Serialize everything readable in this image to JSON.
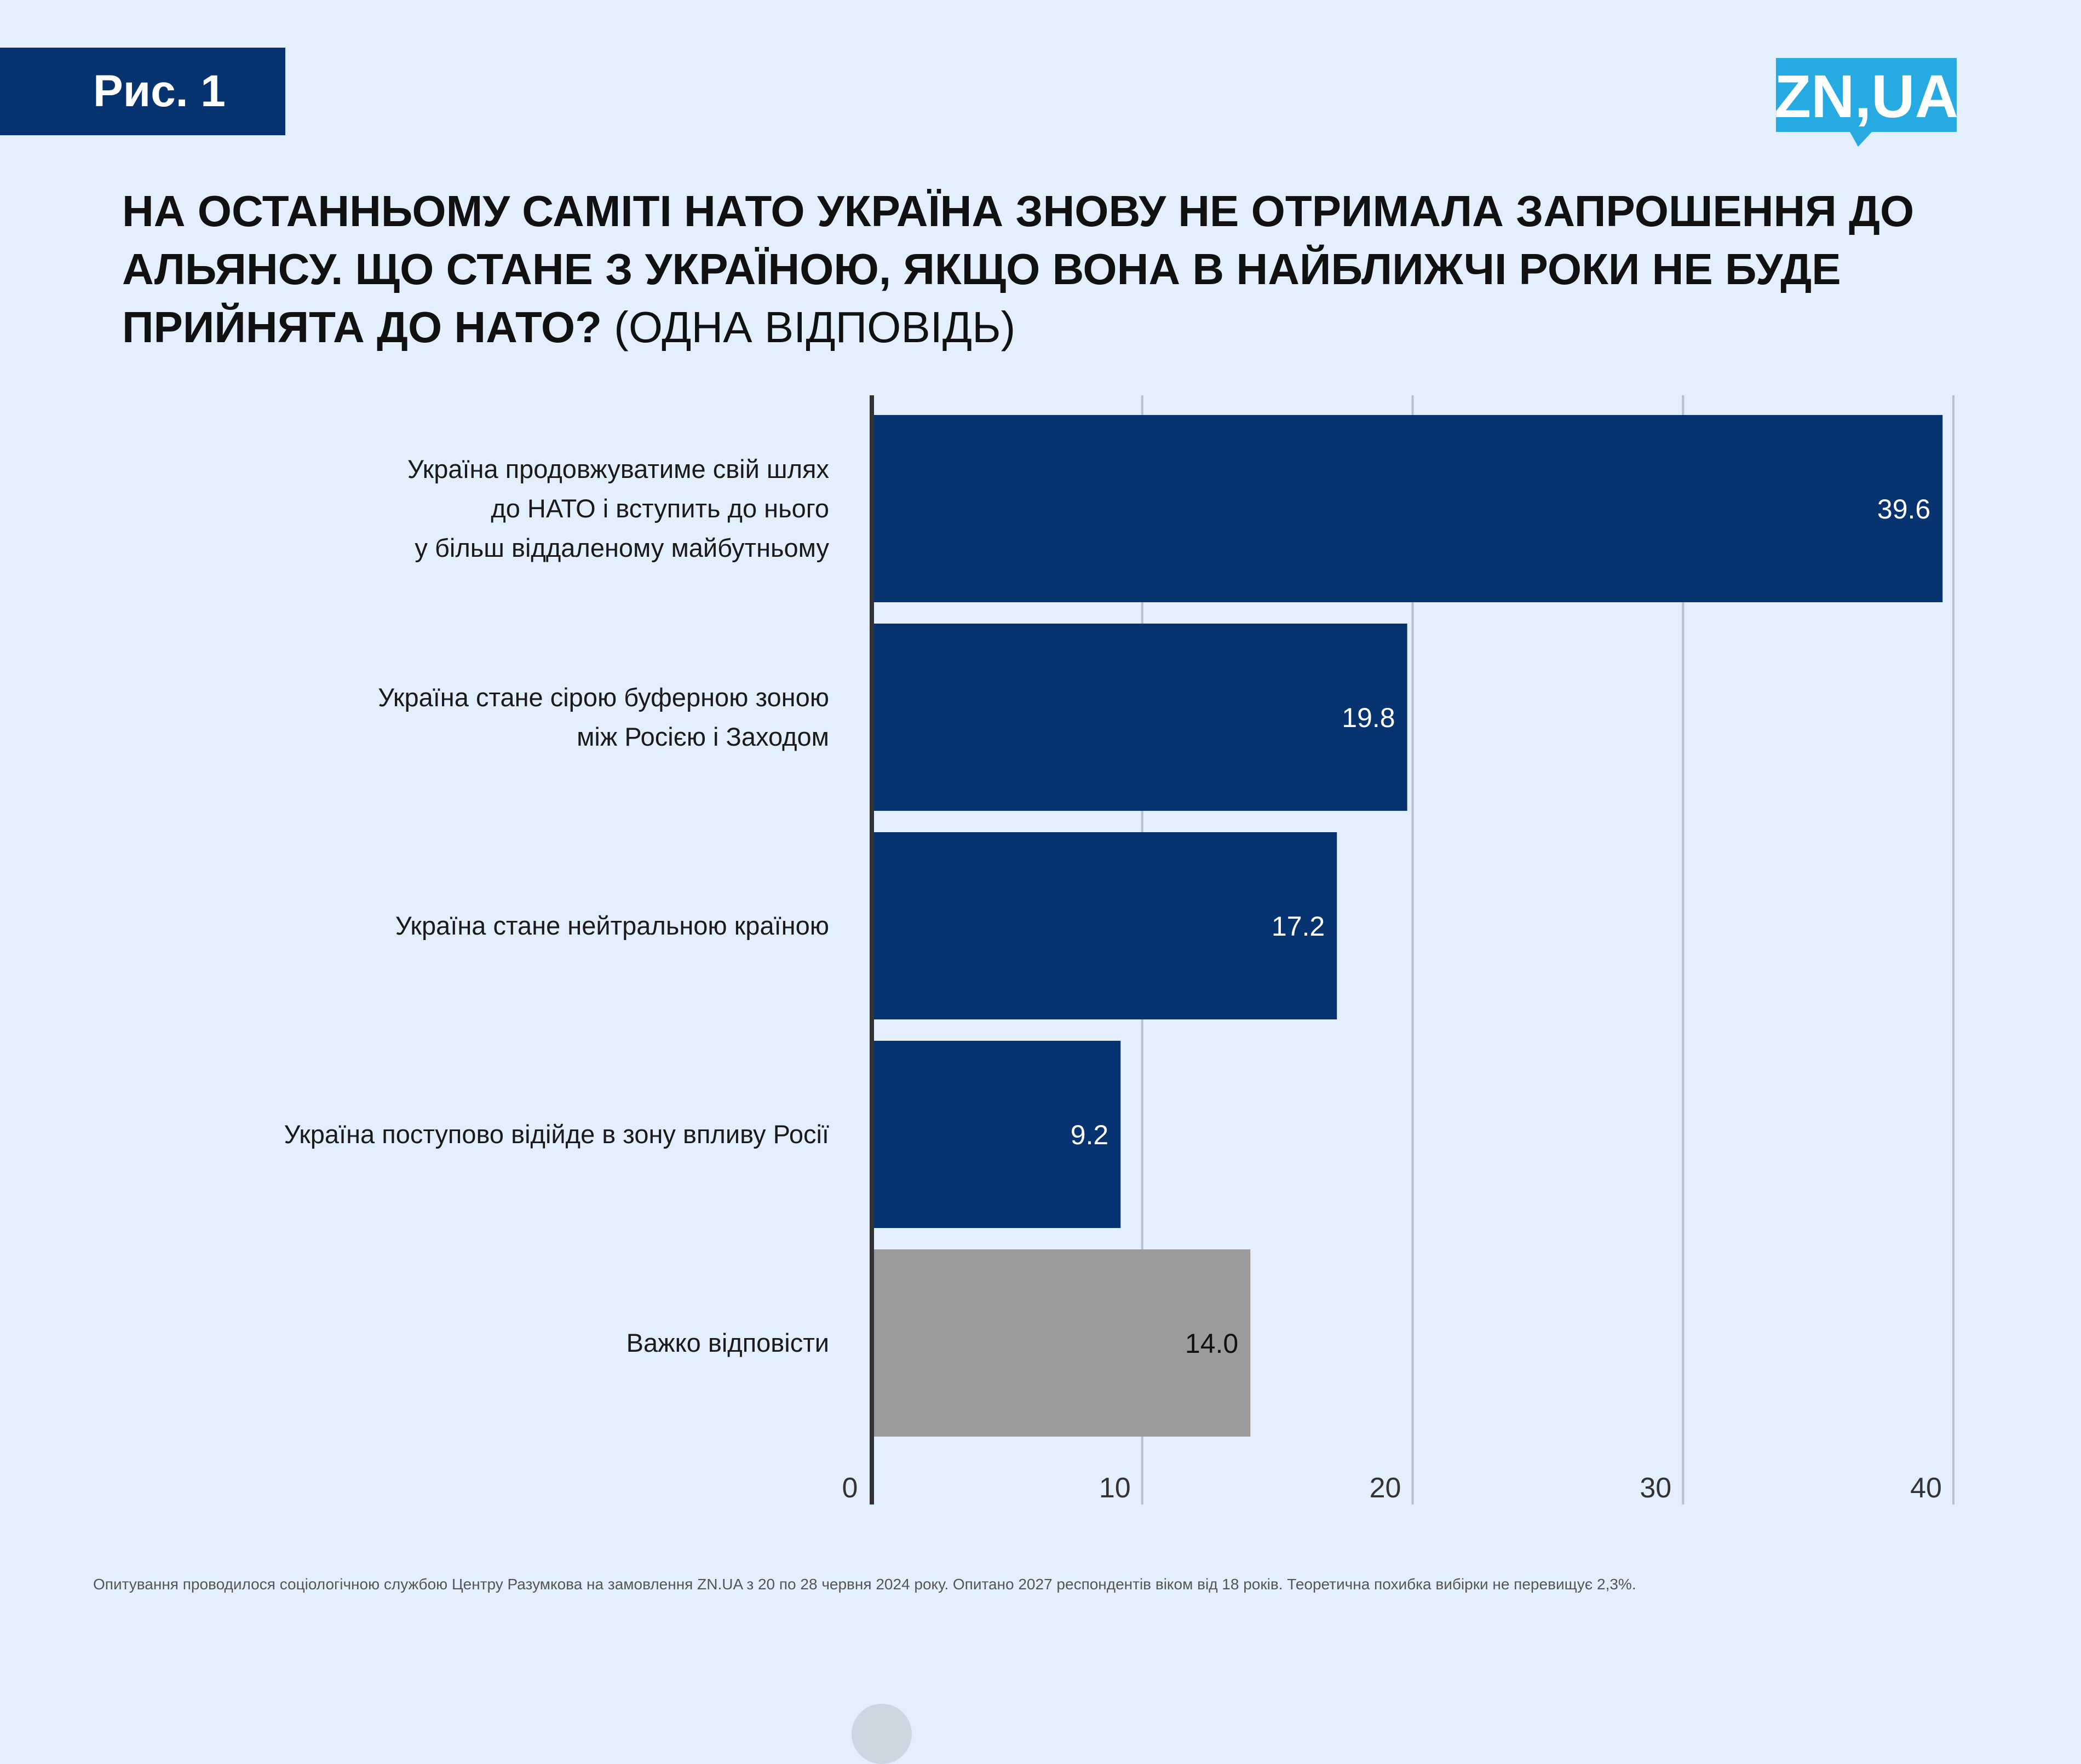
{
  "figure_label": "Рис. 1",
  "logo": {
    "text": "ZN,UA",
    "bg": "#27aae1",
    "fg": "#ffffff"
  },
  "title": {
    "main": "На останньому саміті НАТО Україна знову не отримала запрошення до Альянсу. Що стане з Україною, якщо вона в найближчі роки не буде прийнята до НАТО?",
    "note": "(ОДНА ВІДПОВІДЬ)"
  },
  "chart_data": {
    "type": "bar",
    "orientation": "horizontal",
    "categories": [
      "Україна продовжуватиме свій шлях\nдо НАТО і вступить до нього\nу більш віддаленому майбутньому",
      "Україна стане сірою буферною зоною\nміж Росією і Заходом",
      "Україна стане нейтральною країною",
      "Україна поступово відійде в зону впливу Росії",
      "Важко відповісти"
    ],
    "values": [
      39.6,
      19.8,
      17.2,
      9.2,
      14.0
    ],
    "value_labels": [
      "39.6",
      "19.8",
      "17.2",
      "9.2",
      "14.0"
    ],
    "bar_colors": [
      "#073470",
      "#073470",
      "#073470",
      "#073470",
      "#9b9b9b"
    ],
    "value_label_colors": [
      "#ffffff",
      "#ffffff",
      "#ffffff",
      "#ffffff",
      "#111111"
    ],
    "xlim": [
      0,
      40
    ],
    "xticks": [
      0,
      10,
      20,
      30,
      40
    ],
    "xtick_labels": [
      "0",
      "10",
      "20",
      "30",
      "40"
    ],
    "grid": true,
    "legend": "none"
  },
  "footnote": "Опитування проводилося  соціологічною службою Центру Разумкова на замовлення ZN.UA з 20 по 28 червня 2024 року. Опитано 2027 респондентів віком від 18 років. Теоретична похибка вибірки не перевищує 2,3%."
}
